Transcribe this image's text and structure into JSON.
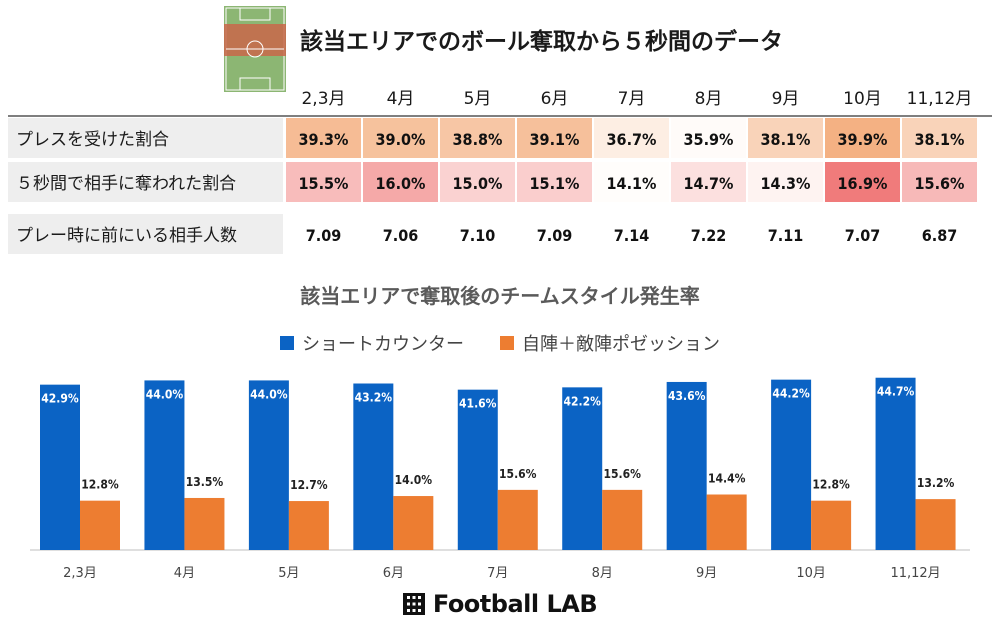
{
  "title": "該当エリアでのボール奪取から５秒間のデータ",
  "icons": {
    "pitch": "pitch-icon",
    "brand_logo": "grid-icon"
  },
  "colors": {
    "blue": "#0b63c4",
    "orange": "#ed7d31",
    "heat_orange": "#f4b183",
    "heat_red": "#f07b7b",
    "row_label_bg": "#eeeeee"
  },
  "table": {
    "months": [
      "2,3月",
      "4月",
      "5月",
      "6月",
      "7月",
      "8月",
      "9月",
      "10月",
      "11,12月"
    ],
    "rows": [
      {
        "label": "プレスを受けた割合",
        "values": [
          "39.3%",
          "39.0%",
          "38.8%",
          "39.1%",
          "36.7%",
          "35.9%",
          "38.1%",
          "39.9%",
          "38.1%"
        ],
        "heat": [
          0.85,
          0.78,
          0.72,
          0.8,
          0.2,
          0.02,
          0.55,
          1.0,
          0.55
        ],
        "scale": "orange"
      },
      {
        "label": "５秒間で相手に奪われた割合",
        "values": [
          "15.5%",
          "16.0%",
          "15.0%",
          "15.1%",
          "14.1%",
          "14.7%",
          "14.3%",
          "16.9%",
          "15.6%"
        ],
        "heat": [
          0.5,
          0.65,
          0.33,
          0.36,
          0.0,
          0.22,
          0.08,
          1.0,
          0.52
        ],
        "scale": "red"
      },
      {
        "label": "プレー時に前にいる相手人数",
        "values": [
          "7.09",
          "7.06",
          "7.10",
          "7.09",
          "7.14",
          "7.22",
          "7.11",
          "7.07",
          "6.87"
        ]
      }
    ]
  },
  "chart_title": "該当エリアで奪取後のチームスタイル発生率",
  "legend": [
    "ショートカウンター",
    "自陣＋敵陣ポゼッション"
  ],
  "chart_data": {
    "type": "bar",
    "categories": [
      "2,3月",
      "4月",
      "5月",
      "6月",
      "7月",
      "8月",
      "9月",
      "10月",
      "11,12月"
    ],
    "series": [
      {
        "name": "ショートカウンター",
        "values": [
          42.9,
          44.0,
          44.0,
          43.2,
          41.6,
          42.2,
          43.6,
          44.2,
          44.7
        ],
        "labels": [
          "42.9%",
          "44.0%",
          "44.0%",
          "43.2%",
          "41.6%",
          "42.2%",
          "43.6%",
          "44.2%",
          "44.7%"
        ]
      },
      {
        "name": "自陣＋敵陣ポゼッション",
        "values": [
          12.8,
          13.5,
          12.7,
          14.0,
          15.6,
          15.6,
          14.4,
          12.8,
          13.2
        ],
        "labels": [
          "12.8%",
          "13.5%",
          "12.7%",
          "14.0%",
          "15.6%",
          "15.6%",
          "14.4%",
          "12.8%",
          "13.2%"
        ]
      }
    ],
    "ylim": [
      0,
      48
    ],
    "grid": false,
    "legend_position": "top"
  },
  "brand": "Football LAB"
}
